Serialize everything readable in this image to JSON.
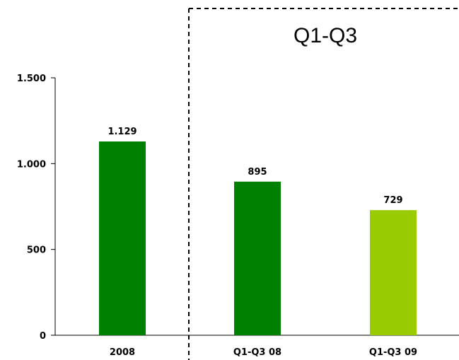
{
  "chart_data": {
    "type": "bar",
    "categories": [
      "2008",
      "Q1-Q3 08",
      "Q1-Q3 09"
    ],
    "values": [
      1129,
      895,
      729
    ],
    "data_labels": [
      "1.129",
      "895",
      "729"
    ],
    "bar_colors": [
      "#008000",
      "#008000",
      "#99cc00"
    ],
    "ylim": [
      0,
      1500
    ],
    "yticks": [
      0,
      500,
      1000,
      1500
    ],
    "ytick_labels": [
      "0",
      "500",
      "1.000",
      "1.500"
    ],
    "grid": false,
    "region_title": "Q1-Q3",
    "title": "",
    "xlabel": "",
    "ylabel": ""
  }
}
